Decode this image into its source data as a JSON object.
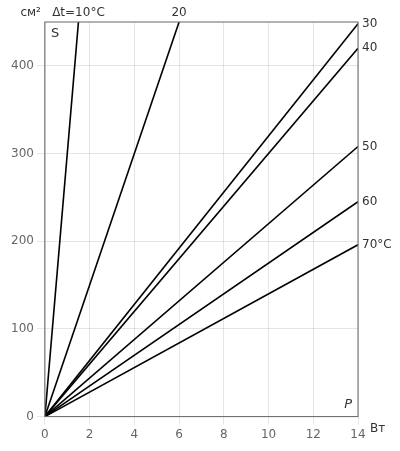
{
  "chart_data": {
    "type": "line",
    "xlabel": "Вт",
    "ylabel": "см²",
    "annotations": [
      "S",
      "P"
    ],
    "color": "#000000",
    "xlim": [
      0,
      14
    ],
    "ylim": [
      0,
      450
    ],
    "xticks": [
      0,
      2,
      4,
      6,
      8,
      10,
      12,
      14
    ],
    "yticks": [
      0,
      100,
      200,
      300,
      400
    ],
    "grid": true,
    "series": [
      {
        "name": "Δt=10°C",
        "x": [
          0,
          1.5
        ],
        "values": [
          0,
          450
        ]
      },
      {
        "name": "20",
        "x": [
          0,
          6
        ],
        "values": [
          0,
          450
        ]
      },
      {
        "name": "30",
        "x": [
          0,
          14
        ],
        "values": [
          0,
          448
        ]
      },
      {
        "name": "40",
        "x": [
          0,
          14
        ],
        "values": [
          0,
          420
        ]
      },
      {
        "name": "50",
        "x": [
          0,
          14
        ],
        "values": [
          0,
          308
        ]
      },
      {
        "name": "60",
        "x": [
          0,
          14
        ],
        "values": [
          0,
          245
        ]
      },
      {
        "name": "70°C",
        "x": [
          0,
          14
        ],
        "values": [
          0,
          196
        ]
      }
    ]
  }
}
